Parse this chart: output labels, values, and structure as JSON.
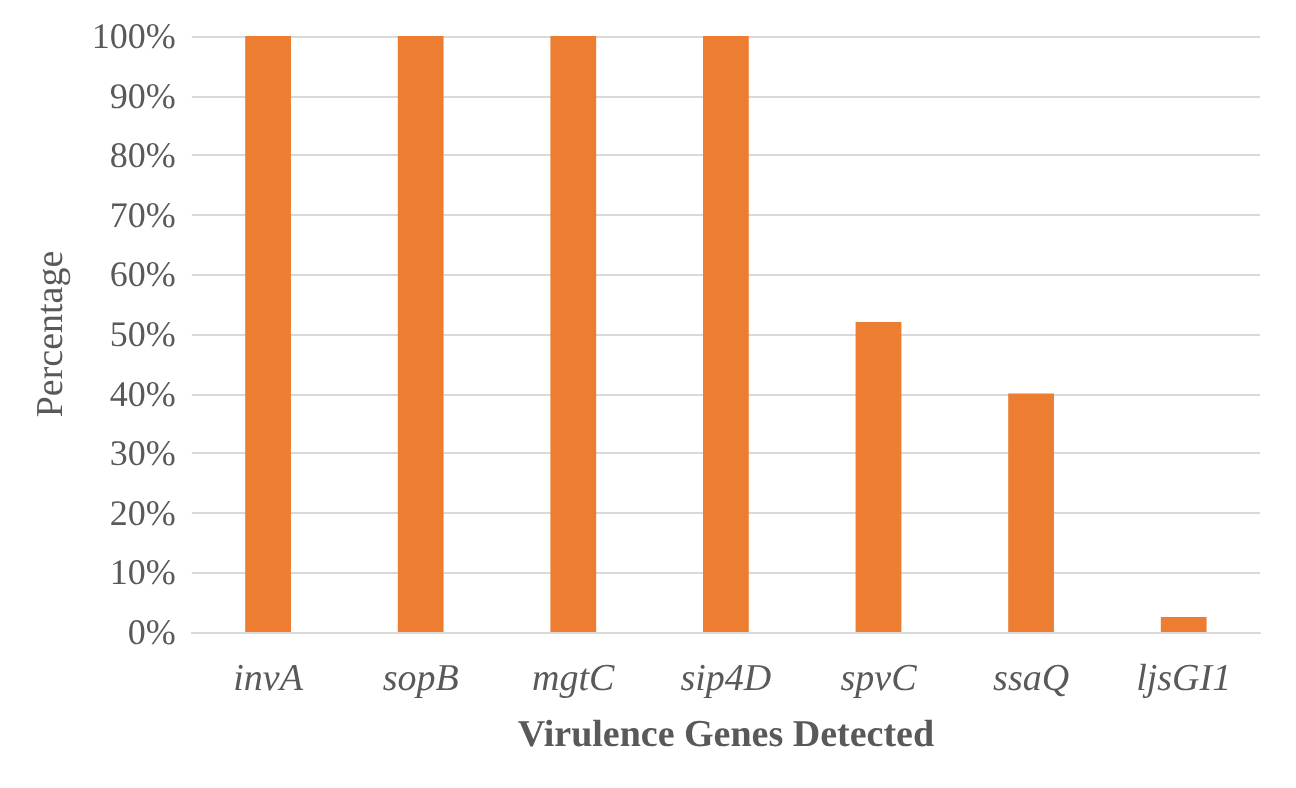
{
  "chart_data": {
    "type": "bar",
    "xlabel": "Virulence Genes Detected",
    "ylabel": "Percentage",
    "categories": [
      "invA",
      "sopB",
      "mgtC",
      "sip4D",
      "spvC",
      "ssaQ",
      "ljsGI1"
    ],
    "values": [
      100,
      100,
      100,
      100,
      52,
      40,
      2.5
    ],
    "color": "#ed7d31",
    "ylim": [
      0,
      100
    ],
    "yticks": [
      {
        "value": 0,
        "label": "0%"
      },
      {
        "value": 10,
        "label": "10%"
      },
      {
        "value": 20,
        "label": "20%"
      },
      {
        "value": 30,
        "label": "30%"
      },
      {
        "value": 40,
        "label": "40%"
      },
      {
        "value": 50,
        "label": "50%"
      },
      {
        "value": 60,
        "label": "60%"
      },
      {
        "value": 70,
        "label": "70%"
      },
      {
        "value": 80,
        "label": "80%"
      },
      {
        "value": 90,
        "label": "90%"
      },
      {
        "value": 100,
        "label": "100%"
      }
    ],
    "grid": "y"
  }
}
